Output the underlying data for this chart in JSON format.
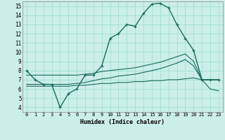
{
  "xlabel": "Humidex (Indice chaleur)",
  "background_color": "#cceee8",
  "line_color": "#1a6b5e",
  "grid_color": "#99ddcc",
  "xlim": [
    -0.5,
    23.5
  ],
  "ylim": [
    3.5,
    15.5
  ],
  "xticks": [
    0,
    1,
    2,
    3,
    4,
    5,
    6,
    7,
    8,
    9,
    10,
    11,
    12,
    13,
    14,
    15,
    16,
    17,
    18,
    19,
    20,
    21,
    22,
    23
  ],
  "yticks": [
    4,
    5,
    6,
    7,
    8,
    9,
    10,
    11,
    12,
    13,
    14,
    15
  ],
  "curve1_x": [
    0,
    1,
    2,
    3,
    4,
    5,
    6,
    7,
    8,
    9,
    10,
    11,
    12,
    13,
    14,
    15,
    16,
    17,
    18,
    19,
    20,
    21,
    22,
    23
  ],
  "curve1_y": [
    8.0,
    7.0,
    6.5,
    6.5,
    4.0,
    5.5,
    6.0,
    7.5,
    7.5,
    8.5,
    11.5,
    12.0,
    13.0,
    12.8,
    14.2,
    15.2,
    15.3,
    14.8,
    13.0,
    11.5,
    10.2,
    7.0,
    7.0,
    7.0
  ],
  "curve2_x": [
    0,
    1,
    2,
    3,
    4,
    5,
    6,
    7,
    8,
    9,
    10,
    11,
    12,
    13,
    14,
    15,
    16,
    17,
    18,
    19,
    20,
    21,
    22,
    23
  ],
  "curve2_y": [
    6.3,
    6.3,
    6.3,
    6.3,
    6.3,
    6.3,
    6.4,
    6.4,
    6.5,
    6.6,
    6.6,
    6.7,
    6.7,
    6.8,
    6.8,
    6.9,
    6.9,
    7.0,
    7.0,
    7.1,
    7.2,
    7.0,
    6.0,
    5.8
  ],
  "curve3_x": [
    0,
    1,
    2,
    3,
    4,
    5,
    6,
    7,
    8,
    9,
    10,
    11,
    12,
    13,
    14,
    15,
    16,
    17,
    18,
    19,
    20,
    21,
    22,
    23
  ],
  "curve3_y": [
    6.5,
    6.5,
    6.5,
    6.5,
    6.5,
    6.5,
    6.6,
    6.7,
    6.9,
    7.1,
    7.2,
    7.4,
    7.5,
    7.6,
    7.8,
    8.0,
    8.2,
    8.5,
    8.8,
    9.2,
    8.5,
    7.0,
    7.0,
    7.0
  ],
  "curve4_x": [
    0,
    1,
    2,
    3,
    4,
    5,
    6,
    7,
    8,
    9,
    10,
    11,
    12,
    13,
    14,
    15,
    16,
    17,
    18,
    19,
    20,
    21,
    22,
    23
  ],
  "curve4_y": [
    7.5,
    7.5,
    7.5,
    7.5,
    7.5,
    7.5,
    7.5,
    7.6,
    7.7,
    7.9,
    8.0,
    8.1,
    8.2,
    8.3,
    8.5,
    8.7,
    8.9,
    9.2,
    9.5,
    9.8,
    9.0,
    7.0,
    7.0,
    7.0
  ]
}
